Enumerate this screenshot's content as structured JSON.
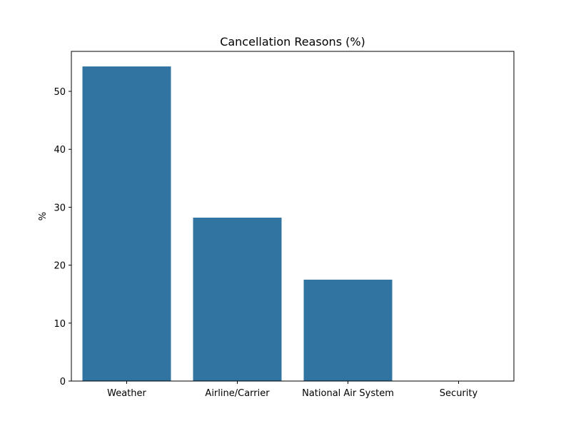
{
  "chart_data": {
    "type": "bar",
    "title": "Cancellation Reasons (%)",
    "xlabel": "",
    "ylabel": "%",
    "categories": [
      "Weather",
      "Airline/Carrier",
      "National Air System",
      "Security"
    ],
    "values": [
      54.3,
      28.2,
      17.5,
      0.0
    ],
    "ylim": [
      0,
      56.9
    ],
    "yticks": [
      0,
      10,
      20,
      30,
      40,
      50
    ],
    "bar_color": "#3274a1",
    "grid": false,
    "legend": "none"
  }
}
